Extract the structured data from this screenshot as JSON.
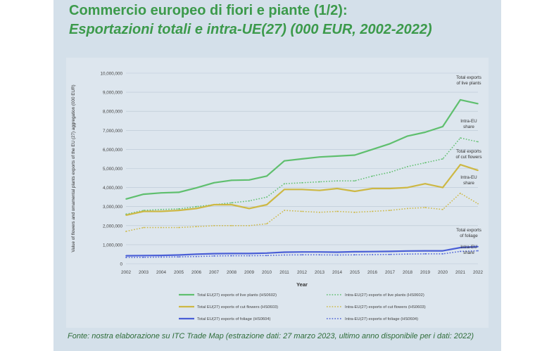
{
  "slide": {
    "title_line1": "Commercio europeo di fiori e piante (1/2):",
    "title_line2": "Esportazioni totali e intra-UE(27) (000 EUR, 2002-2022)",
    "source": "Fonte: nostra elaborazione su ITC Trade Map (estrazione dati: 27 marzo 2023, ultimo anno disponibile per i dati: 2022)"
  },
  "colors": {
    "live_plants": "#5fbf6e",
    "cut_flowers": "#cdb844",
    "foliage": "#4a5fd6",
    "title": "#3c9a4b",
    "background": "#d4e0ea"
  },
  "chart_data": {
    "type": "line",
    "xlabel": "Year",
    "ylabel": "Value of flowers and ornamental plants exports of the EU (27) aggregation (000 EUR)",
    "x": [
      "2002",
      "2003",
      "2004",
      "2005",
      "2006",
      "2007",
      "2008",
      "2009",
      "2010",
      "2011",
      "2012",
      "2013",
      "2014",
      "2015",
      "2016",
      "2017",
      "2018",
      "2019",
      "2020",
      "2021",
      "2022"
    ],
    "y_ticks": [
      "0",
      "1,000,000",
      "2,000,000",
      "3,000,000",
      "4,000,000",
      "5,000,000",
      "6,000,000",
      "7,000,000",
      "8,000,000",
      "9,000,000",
      "10,000,000"
    ],
    "ylim": [
      0,
      10000000
    ],
    "grid": true,
    "series": [
      {
        "name": "Total EU(27) exports of live plants (HS0602)",
        "style": "solid",
        "color": "#5fbf6e",
        "values": [
          3400000,
          3650000,
          3720000,
          3750000,
          3980000,
          4250000,
          4380000,
          4400000,
          4600000,
          5400000,
          5500000,
          5600000,
          5650000,
          5700000,
          6000000,
          6300000,
          6700000,
          6900000,
          7200000,
          8600000,
          8400000
        ]
      },
      {
        "name": "Intra-EU(27) exports of live plants (HS0602)",
        "style": "dotted",
        "color": "#5fbf6e",
        "values": [
          2600000,
          2800000,
          2850000,
          2880000,
          3000000,
          3100000,
          3200000,
          3300000,
          3500000,
          4200000,
          4250000,
          4300000,
          4350000,
          4350000,
          4600000,
          4800000,
          5100000,
          5300000,
          5500000,
          6600000,
          6400000
        ]
      },
      {
        "name": "Total EU(27) exports of cut flowers (HS0603)",
        "style": "solid",
        "color": "#cdb844",
        "values": [
          2550000,
          2750000,
          2750000,
          2800000,
          2900000,
          3100000,
          3100000,
          2900000,
          3100000,
          3900000,
          3900000,
          3850000,
          3950000,
          3800000,
          3950000,
          3950000,
          4000000,
          4200000,
          4000000,
          5200000,
          4900000
        ]
      },
      {
        "name": "Intra-EU(27) exports of cut flowers (HS0603)",
        "style": "dotted",
        "color": "#cdb844",
        "values": [
          1700000,
          1900000,
          1900000,
          1900000,
          1950000,
          2000000,
          2000000,
          2000000,
          2100000,
          2800000,
          2750000,
          2700000,
          2750000,
          2700000,
          2750000,
          2800000,
          2900000,
          2950000,
          2850000,
          3700000,
          3150000
        ]
      },
      {
        "name": "Total EU(27) exports of foliage (HS0604)",
        "style": "solid",
        "color": "#4a5fd6",
        "values": [
          420000,
          430000,
          440000,
          460000,
          500000,
          530000,
          540000,
          540000,
          560000,
          610000,
          620000,
          620000,
          610000,
          630000,
          640000,
          650000,
          670000,
          680000,
          680000,
          850000,
          900000
        ]
      },
      {
        "name": "Intra-EU(27) exports of foliage (HS0604)",
        "style": "dotted",
        "color": "#4a5fd6",
        "values": [
          330000,
          340000,
          350000,
          360000,
          380000,
          410000,
          420000,
          420000,
          430000,
          460000,
          470000,
          470000,
          460000,
          470000,
          480000,
          490000,
          510000,
          520000,
          520000,
          650000,
          680000
        ]
      }
    ],
    "annotations": [
      {
        "lines": [
          "Total exports",
          "of live plants"
        ],
        "series_index": 0
      },
      {
        "lines": [
          "Intra-EU",
          "share"
        ],
        "series_index": 1
      },
      {
        "lines": [
          "Total exports",
          "of cut flowers"
        ],
        "series_index": 2
      },
      {
        "lines": [
          "Intra-EU",
          "share"
        ],
        "series_index": 3
      },
      {
        "lines": [
          "Total exports",
          "of foliage"
        ],
        "series_index": 4
      },
      {
        "lines": [
          "Intra-EU",
          "share"
        ],
        "series_index": 5
      }
    ],
    "legend_placement": "bottom"
  }
}
